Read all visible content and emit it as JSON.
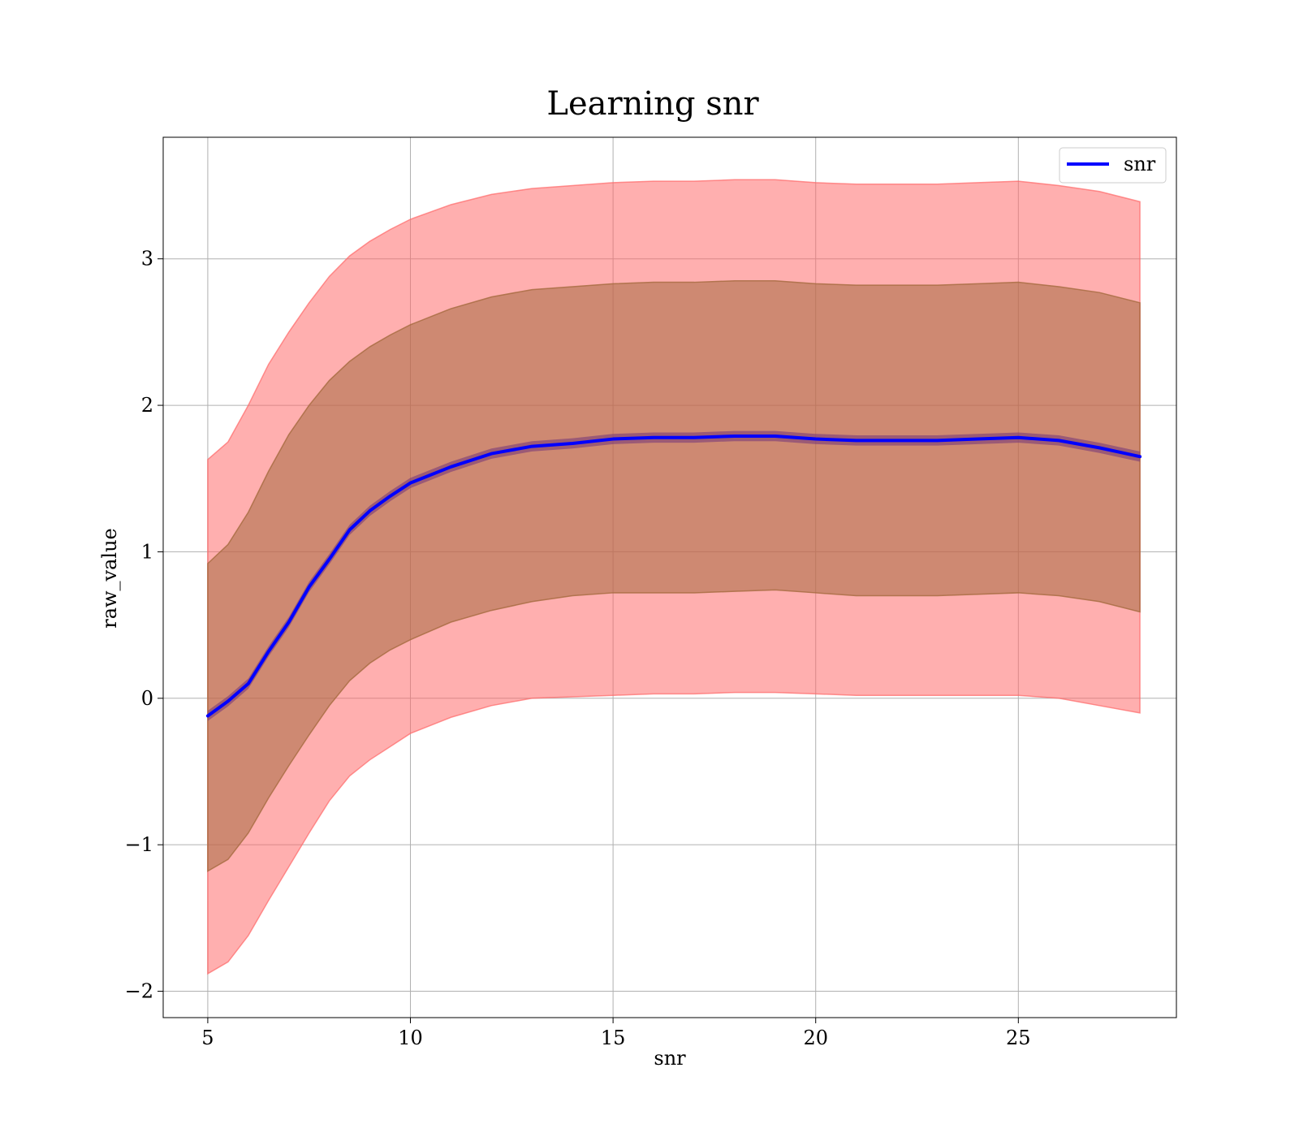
{
  "chart_data": {
    "type": "line",
    "title": "Learning snr",
    "xlabel": "snr",
    "ylabel": "raw_value",
    "xlim": [
      3.9,
      28.9
    ],
    "ylim": [
      -2.18,
      3.83
    ],
    "xticks": [
      5,
      10,
      15,
      20,
      25
    ],
    "yticks": [
      -2,
      -1,
      0,
      1,
      2,
      3
    ],
    "xtick_labels": [
      "5",
      "10",
      "15",
      "20",
      "25"
    ],
    "ytick_labels": [
      "−2",
      "−1",
      "0",
      "1",
      "2",
      "3"
    ],
    "grid": true,
    "legend": {
      "placement": "top-right",
      "entries": [
        "snr"
      ]
    },
    "colors": {
      "line": "#0000ff",
      "outer_band": "#ff6666",
      "inner_band": "#a56a3f",
      "mean_band": "#7a3a7a"
    },
    "x": [
      5,
      5.5,
      6,
      6.5,
      7,
      7.5,
      8,
      8.5,
      9,
      9.5,
      10,
      11,
      12,
      13,
      14,
      15,
      16,
      17,
      18,
      19,
      20,
      21,
      22,
      23,
      24,
      25,
      26,
      27,
      28
    ],
    "series": [
      {
        "name": "snr",
        "values": [
          -0.12,
          -0.02,
          0.1,
          0.32,
          0.52,
          0.76,
          0.95,
          1.15,
          1.28,
          1.38,
          1.47,
          1.58,
          1.67,
          1.72,
          1.74,
          1.77,
          1.78,
          1.78,
          1.79,
          1.79,
          1.77,
          1.76,
          1.76,
          1.76,
          1.77,
          1.78,
          1.76,
          1.71,
          1.65
        ],
        "inner_upper": [
          0.92,
          1.05,
          1.27,
          1.55,
          1.8,
          2.0,
          2.17,
          2.3,
          2.4,
          2.48,
          2.55,
          2.66,
          2.74,
          2.79,
          2.81,
          2.83,
          2.84,
          2.84,
          2.85,
          2.85,
          2.83,
          2.82,
          2.82,
          2.82,
          2.83,
          2.84,
          2.81,
          2.77,
          2.7
        ],
        "inner_lower": [
          -1.18,
          -1.1,
          -0.92,
          -0.68,
          -0.46,
          -0.25,
          -0.05,
          0.12,
          0.24,
          0.33,
          0.4,
          0.52,
          0.6,
          0.66,
          0.7,
          0.72,
          0.72,
          0.72,
          0.73,
          0.74,
          0.72,
          0.7,
          0.7,
          0.7,
          0.71,
          0.72,
          0.7,
          0.66,
          0.59
        ],
        "outer_upper": [
          1.63,
          1.75,
          2.0,
          2.28,
          2.5,
          2.7,
          2.88,
          3.02,
          3.12,
          3.2,
          3.27,
          3.37,
          3.44,
          3.48,
          3.5,
          3.52,
          3.53,
          3.53,
          3.54,
          3.54,
          3.52,
          3.51,
          3.51,
          3.51,
          3.52,
          3.53,
          3.5,
          3.46,
          3.39
        ],
        "outer_lower": [
          -1.88,
          -1.8,
          -1.62,
          -1.38,
          -1.15,
          -0.92,
          -0.7,
          -0.53,
          -0.42,
          -0.33,
          -0.24,
          -0.13,
          -0.05,
          0.0,
          0.01,
          0.02,
          0.03,
          0.03,
          0.04,
          0.04,
          0.03,
          0.02,
          0.02,
          0.02,
          0.02,
          0.02,
          0.0,
          -0.05,
          -0.1
        ]
      }
    ]
  }
}
